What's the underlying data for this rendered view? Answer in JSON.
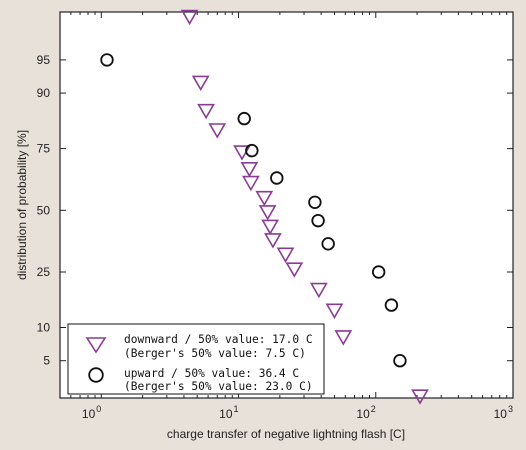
{
  "chart_data": {
    "type": "scatter",
    "xlabel": "charge transfer of negative lightning flash [C]",
    "ylabel": "distribution of probability [%]",
    "x_scale": "log",
    "y_scale": "probability",
    "xlim": [
      0.5,
      1000
    ],
    "ylim": [
      2,
      98.5
    ],
    "x_ticks": [
      {
        "value": 1,
        "label": "10",
        "exp": "0"
      },
      {
        "value": 10,
        "label": "10",
        "exp": "1"
      },
      {
        "value": 100,
        "label": "10",
        "exp": "2"
      },
      {
        "value": 1000,
        "label": "10",
        "exp": "3"
      }
    ],
    "y_ticks": [
      {
        "value": 5,
        "label": "5"
      },
      {
        "value": 10,
        "label": "10"
      },
      {
        "value": 25,
        "label": "25"
      },
      {
        "value": 50,
        "label": "50"
      },
      {
        "value": 75,
        "label": "75"
      },
      {
        "value": 90,
        "label": "90"
      },
      {
        "value": 95,
        "label": "95"
      }
    ],
    "grid": false,
    "legend_position": "bottom-left",
    "series": [
      {
        "marker": "triangle-down",
        "color": "#8a3c94",
        "legend_lines": [
          "downward / 50% value: 17.0 C",
          "(Berger's 50% value: 7.5 C)"
        ],
        "points": [
          {
            "x": 4.4,
            "y": 98.3
          },
          {
            "x": 5.3,
            "y": 91.9
          },
          {
            "x": 5.8,
            "y": 86.2
          },
          {
            "x": 7.0,
            "y": 81.0
          },
          {
            "x": 10.6,
            "y": 73.8
          },
          {
            "x": 12.0,
            "y": 67.5
          },
          {
            "x": 12.3,
            "y": 61.9
          },
          {
            "x": 15.4,
            "y": 55.5
          },
          {
            "x": 16.3,
            "y": 49.3
          },
          {
            "x": 17.0,
            "y": 43.0
          },
          {
            "x": 17.8,
            "y": 37.3
          },
          {
            "x": 22.0,
            "y": 31.5
          },
          {
            "x": 25.5,
            "y": 26.0
          },
          {
            "x": 38.5,
            "y": 19.3
          },
          {
            "x": 50.0,
            "y": 13.7
          },
          {
            "x": 58.0,
            "y": 8.3
          },
          {
            "x": 210.0,
            "y": 2.1
          }
        ]
      },
      {
        "marker": "circle",
        "color": "#111111",
        "legend_lines": [
          "upward / 50% value: 36.4 C",
          "(Berger's 50% value: 23.0 C)"
        ],
        "points": [
          {
            "x": 1.1,
            "y": 95.0
          },
          {
            "x": 11.0,
            "y": 84.2
          },
          {
            "x": 12.5,
            "y": 74.3
          },
          {
            "x": 19.0,
            "y": 63.8
          },
          {
            "x": 36.0,
            "y": 53.5
          },
          {
            "x": 38.0,
            "y": 45.5
          },
          {
            "x": 45.0,
            "y": 35.7
          },
          {
            "x": 105.0,
            "y": 25.0
          },
          {
            "x": 130.0,
            "y": 15.0
          },
          {
            "x": 150.0,
            "y": 5.0
          }
        ]
      }
    ]
  }
}
